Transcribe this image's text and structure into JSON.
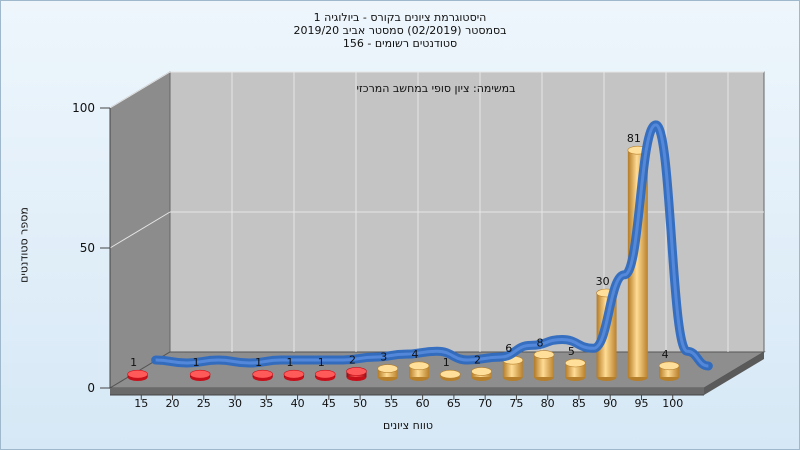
{
  "titles": {
    "line1": "היסטוגרמת ציונים בקורס - ביולוגיה 1",
    "line2": "בסמסטר  (02/2019)  סמסטר אביב 2019/20",
    "line3": "סטודנטים רשומים - 156"
  },
  "chart_data": {
    "type": "bar",
    "title": "היסטוגרמת ציונים בקורס - ביולוגיה 1",
    "annotation": "במשימה: ציון סופי במחשב המרכזי",
    "xlabel": "טווח ציונים",
    "ylabel": "מספר סטודנטים",
    "ylim": [
      0,
      100
    ],
    "yticks": [
      0,
      50,
      100
    ],
    "categories": [
      "15",
      "20",
      "25",
      "30",
      "35",
      "40",
      "45",
      "50",
      "55",
      "60",
      "65",
      "70",
      "75",
      "80",
      "85",
      "90",
      "95",
      "100"
    ],
    "values": [
      1,
      0,
      1,
      0,
      1,
      1,
      1,
      2,
      3,
      4,
      1,
      2,
      6,
      8,
      5,
      30,
      81,
      4
    ],
    "fail_colors": [
      "#c8101b",
      "#ff5a5a"
    ],
    "pass_colors": [
      "#b57f2b",
      "#ffdf9a"
    ],
    "curve_color": "#2f6ac0",
    "grid": true
  }
}
